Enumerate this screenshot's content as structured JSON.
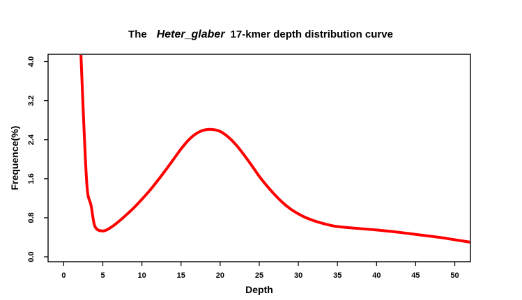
{
  "chart_data": {
    "type": "line",
    "title": {
      "prefix": "The",
      "species": "Heter_glaber",
      "suffix": "17-kmer depth distribution curve"
    },
    "xlabel": "Depth",
    "ylabel": "Frequence(%)",
    "xlim": [
      -2,
      52
    ],
    "ylim": [
      -0.1,
      4.15
    ],
    "xticks": [
      0,
      5,
      10,
      15,
      20,
      25,
      30,
      35,
      40,
      45,
      50
    ],
    "yticks": [
      0.0,
      0.8,
      1.6,
      2.4,
      3.2,
      4.0
    ],
    "ytick_labels": [
      "0.0",
      "0.8",
      "1.6",
      "2.4",
      "3.2",
      "4.0"
    ],
    "grid": false,
    "series": [
      {
        "color": "#ff0000",
        "x": [
          2.2,
          2.6,
          3.0,
          3.5,
          4.0,
          5.0,
          6.0,
          7.0,
          8.0,
          9.0,
          10.0,
          11.0,
          12.0,
          13.0,
          14.0,
          15.0,
          16.0,
          17.0,
          18.0,
          19.0,
          20.0,
          21.0,
          22.0,
          23.0,
          24.0,
          25.0,
          26.0,
          27.0,
          28.0,
          29.0,
          30.0,
          31.0,
          32.0,
          33.0,
          34.0,
          35.0,
          37.0,
          40.0,
          43.0,
          45.0,
          48.0,
          50.0,
          52.0
        ],
        "y": [
          4.15,
          2.6,
          1.4,
          1.05,
          0.62,
          0.53,
          0.6,
          0.72,
          0.86,
          1.01,
          1.18,
          1.36,
          1.56,
          1.77,
          1.99,
          2.21,
          2.4,
          2.53,
          2.6,
          2.61,
          2.57,
          2.46,
          2.3,
          2.1,
          1.88,
          1.65,
          1.45,
          1.27,
          1.11,
          0.98,
          0.88,
          0.8,
          0.74,
          0.69,
          0.65,
          0.62,
          0.59,
          0.55,
          0.5,
          0.46,
          0.4,
          0.35,
          0.3
        ]
      }
    ]
  }
}
